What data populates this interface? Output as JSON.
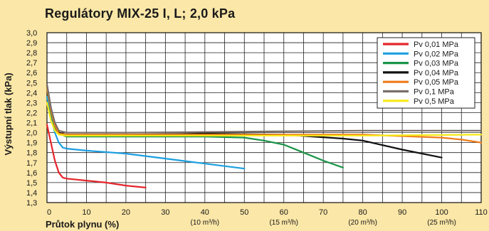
{
  "chart_data": {
    "type": "line",
    "title": "Regulátory MIX-25 I, L; 2,0 kPa",
    "ylabel": "Výstupní tlak (kPa)",
    "xlabel": "Průtok plynu (%)",
    "xlim": [
      0,
      110
    ],
    "ylim": [
      1.3,
      3.0
    ],
    "x_ticks": [
      "0",
      "10",
      "20",
      "30",
      "40",
      "50",
      "60",
      "70",
      "80",
      "90",
      "100",
      "110"
    ],
    "y_ticks": [
      "1,3",
      "1,4",
      "1,5",
      "1,6",
      "1,7",
      "1,8",
      "1,9",
      "2,0",
      "2,1",
      "2,2",
      "2,3",
      "2,4",
      "2,5",
      "2,6",
      "2,7",
      "2,8",
      "2,9",
      "3,0"
    ],
    "flow_labels": [
      {
        "x": 40,
        "text": "(10 m³/h)"
      },
      {
        "x": 60,
        "text": "(15 m³/h)"
      },
      {
        "x": 80,
        "text": "(20 m³/h)"
      },
      {
        "x": 100,
        "text": "(25 m³/h)"
      }
    ],
    "grid": true,
    "legend_position": "top-right",
    "series": [
      {
        "name": "Pv 0,01 MPa",
        "color": "#e3262c",
        "points": [
          [
            0,
            2.08
          ],
          [
            1,
            1.9
          ],
          [
            2,
            1.72
          ],
          [
            3,
            1.6
          ],
          [
            4,
            1.55
          ],
          [
            5,
            1.54
          ],
          [
            10,
            1.52
          ],
          [
            15,
            1.5
          ],
          [
            20,
            1.47
          ],
          [
            25,
            1.45
          ]
        ]
      },
      {
        "name": "Pv 0,02 MPa",
        "color": "#1d9fe0",
        "points": [
          [
            0,
            2.36
          ],
          [
            1,
            2.15
          ],
          [
            2,
            2.0
          ],
          [
            3,
            1.9
          ],
          [
            4,
            1.85
          ],
          [
            5,
            1.84
          ],
          [
            10,
            1.82
          ],
          [
            20,
            1.79
          ],
          [
            30,
            1.74
          ],
          [
            40,
            1.69
          ],
          [
            50,
            1.64
          ]
        ]
      },
      {
        "name": "Pv 0,03 MPa",
        "color": "#1a9448",
        "points": [
          [
            0,
            2.45
          ],
          [
            1,
            2.2
          ],
          [
            2,
            2.05
          ],
          [
            3,
            1.99
          ],
          [
            5,
            1.96
          ],
          [
            20,
            1.96
          ],
          [
            40,
            1.96
          ],
          [
            50,
            1.95
          ],
          [
            55,
            1.92
          ],
          [
            60,
            1.88
          ],
          [
            65,
            1.8
          ],
          [
            70,
            1.72
          ],
          [
            75,
            1.65
          ]
        ]
      },
      {
        "name": "Pv 0,04 MPa",
        "color": "#111111",
        "points": [
          [
            0,
            2.48
          ],
          [
            1,
            2.25
          ],
          [
            2,
            2.08
          ],
          [
            3,
            2.0
          ],
          [
            5,
            1.98
          ],
          [
            20,
            1.98
          ],
          [
            40,
            1.99
          ],
          [
            60,
            1.98
          ],
          [
            75,
            1.94
          ],
          [
            80,
            1.92
          ],
          [
            90,
            1.83
          ],
          [
            100,
            1.75
          ]
        ]
      },
      {
        "name": "Pv 0,05 MPa",
        "color": "#ef7c18",
        "points": [
          [
            0,
            2.45
          ],
          [
            1,
            2.22
          ],
          [
            2,
            2.07
          ],
          [
            3,
            1.99
          ],
          [
            5,
            1.98
          ],
          [
            20,
            1.98
          ],
          [
            50,
            1.98
          ],
          [
            80,
            1.98
          ],
          [
            100,
            1.95
          ],
          [
            105,
            1.93
          ],
          [
            110,
            1.9
          ]
        ]
      },
      {
        "name": "Pv 0,1 MPa",
        "color": "#7a6f6a",
        "points": [
          [
            0,
            2.48
          ],
          [
            1,
            2.25
          ],
          [
            2,
            2.1
          ],
          [
            3,
            2.02
          ],
          [
            5,
            2.0
          ],
          [
            20,
            2.0
          ],
          [
            50,
            2.01
          ],
          [
            80,
            2.02
          ],
          [
            110,
            2.02
          ]
        ]
      },
      {
        "name": "Pv 0,5 MPa",
        "color": "#f7ea16",
        "points": [
          [
            0,
            2.3
          ],
          [
            1,
            2.12
          ],
          [
            2,
            2.02
          ],
          [
            3,
            1.98
          ],
          [
            5,
            1.97
          ],
          [
            20,
            1.97
          ],
          [
            50,
            1.97
          ],
          [
            80,
            1.97
          ],
          [
            110,
            1.98
          ]
        ]
      }
    ]
  }
}
